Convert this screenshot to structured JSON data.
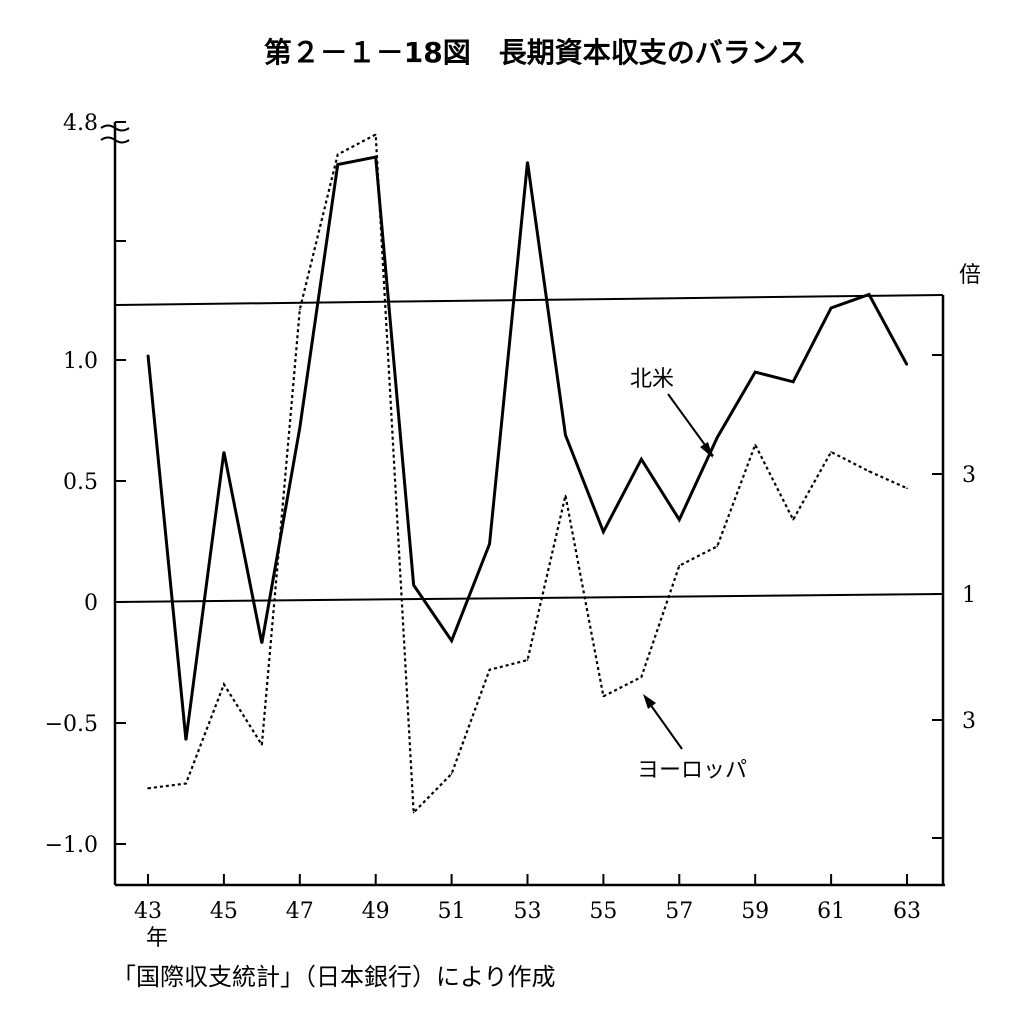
{
  "chart_data": {
    "type": "line",
    "title": "第２－１－18図　長期資本収支のバランス",
    "source": "「国際収支統計」（日本銀行）により作成",
    "x": [
      43,
      44,
      45,
      46,
      47,
      48,
      49,
      50,
      51,
      52,
      53,
      54,
      55,
      56,
      57,
      58,
      59,
      60,
      61,
      62,
      63
    ],
    "x_tick_labels": [
      "43",
      "45",
      "47",
      "49",
      "51",
      "53",
      "55",
      "57",
      "59",
      "61",
      "63"
    ],
    "x_tick_values": [
      43,
      45,
      47,
      49,
      51,
      53,
      55,
      57,
      59,
      61,
      63
    ],
    "x_unit_label": "年",
    "left_y_tick_labels": [
      "4.8",
      "1.0",
      "0.5",
      "0",
      "−0.5",
      "−1.0"
    ],
    "left_y_tick_values": [
      4.8,
      1.0,
      0.5,
      0,
      -0.5,
      -1.0
    ],
    "right_y_unit": "倍",
    "right_y_tick_labels": [
      "3",
      "1",
      "3"
    ],
    "series": [
      {
        "name": "北米",
        "style": "solid",
        "values": [
          1.02,
          -0.57,
          0.62,
          -0.17,
          0.72,
          4.15,
          4.3,
          0.07,
          -0.16,
          0.24,
          4.2,
          0.69,
          0.29,
          0.59,
          0.34,
          0.68,
          0.95,
          0.91,
          1.28,
          1.55,
          0.98
        ]
      },
      {
        "name": "ヨーロッパ",
        "style": "dotted",
        "values": [
          -0.77,
          -0.75,
          -0.34,
          -0.59,
          1.25,
          4.35,
          4.75,
          -0.87,
          -0.71,
          -0.28,
          -0.24,
          0.44,
          -0.39,
          -0.31,
          0.15,
          0.23,
          0.65,
          0.34,
          0.62,
          0.54,
          0.47
        ]
      }
    ],
    "colors": {
      "line": "#000000",
      "background": "#ffffff"
    }
  }
}
